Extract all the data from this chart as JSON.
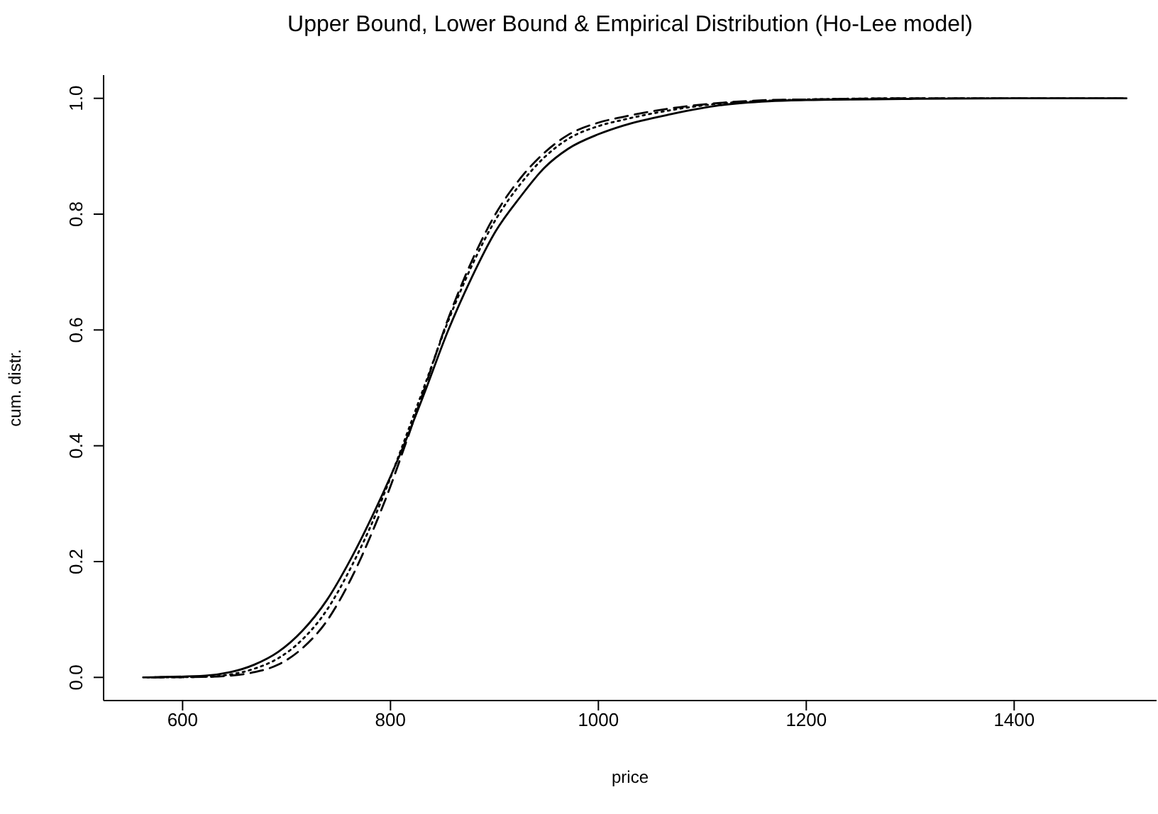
{
  "chart_data": {
    "type": "line",
    "title": "Upper Bound, Lower Bound & Empirical Distribution (Ho-Lee model)",
    "xlabel": "price",
    "ylabel": "cum. distr.",
    "x": [
      562,
      622,
      646,
      669,
      692,
      715,
      739,
      762,
      785,
      800,
      808,
      832,
      855,
      878,
      901,
      925,
      948,
      971,
      1000,
      1024,
      1071,
      1117,
      1164,
      1200,
      1300,
      1400,
      1508
    ],
    "series": [
      {
        "color": "#000000",
        "line_style": "solid",
        "values": [
          0,
          0.003,
          0.009,
          0.022,
          0.044,
          0.08,
          0.134,
          0.205,
          0.288,
          0.347,
          0.38,
          0.488,
          0.597,
          0.69,
          0.77,
          0.83,
          0.88,
          0.913,
          0.938,
          0.953,
          0.973,
          0.988,
          0.995,
          0.997,
          0.999,
          1,
          1
        ]
      },
      {
        "color": "#000000",
        "line_style": "dotted",
        "x": [
          566,
          622,
          646,
          669,
          692,
          715,
          739,
          762,
          785,
          800,
          808,
          832,
          855,
          878,
          901,
          925,
          948,
          971,
          1000,
          1024,
          1071,
          1117,
          1164,
          1200,
          1300,
          1400,
          1505
        ],
        "values": [
          0,
          0.001,
          0.005,
          0.015,
          0.033,
          0.065,
          0.117,
          0.19,
          0.278,
          0.345,
          0.383,
          0.5,
          0.613,
          0.71,
          0.79,
          0.852,
          0.898,
          0.93,
          0.952,
          0.963,
          0.98,
          0.991,
          0.996,
          0.998,
          1,
          1,
          1
        ]
      },
      {
        "color": "#000000",
        "line_style": "dashed",
        "x": [
          570,
          622,
          646,
          669,
          692,
          715,
          739,
          762,
          785,
          800,
          808,
          832,
          855,
          878,
          901,
          925,
          948,
          971,
          1000,
          1024,
          1071,
          1117,
          1164,
          1200,
          1300,
          1400,
          1502
        ],
        "values": [
          0,
          0.001,
          0.003,
          0.009,
          0.022,
          0.05,
          0.098,
          0.17,
          0.262,
          0.33,
          0.37,
          0.495,
          0.617,
          0.718,
          0.8,
          0.862,
          0.906,
          0.937,
          0.958,
          0.968,
          0.983,
          0.992,
          0.997,
          0.998,
          1,
          1,
          1
        ]
      }
    ],
    "xlim": [
      524,
      1537
    ],
    "xticks": [
      600,
      800,
      1000,
      1200,
      1400
    ],
    "ylim": [
      -0.04,
      1.04
    ],
    "yticks": [
      {
        "value": 0,
        "label": "0.0"
      },
      {
        "value": 0.2,
        "label": "0.2"
      },
      {
        "value": 0.4,
        "label": "0.4"
      },
      {
        "value": 0.6,
        "label": "0.6"
      },
      {
        "value": 0.8,
        "label": "0.8"
      },
      {
        "value": 1,
        "label": "1.0"
      }
    ],
    "grid": false,
    "legend": false,
    "marker": "none"
  }
}
